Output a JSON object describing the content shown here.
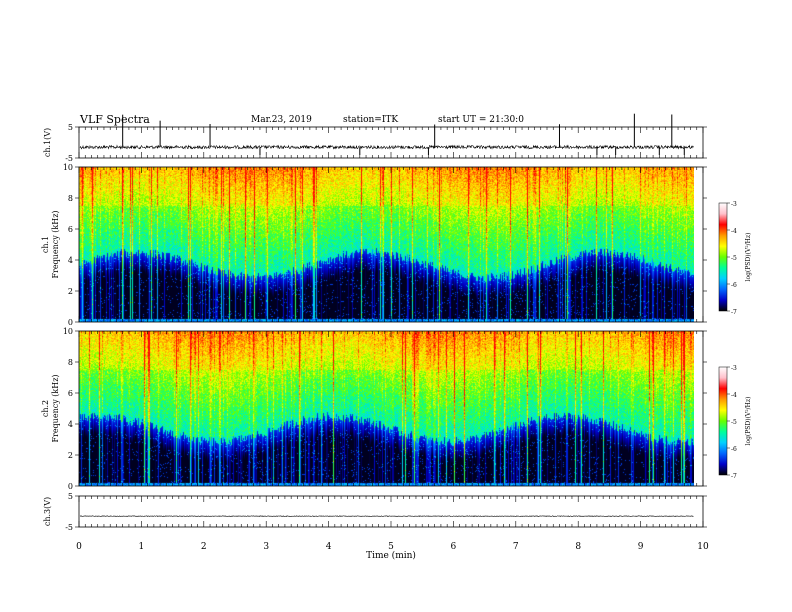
{
  "header": {
    "title": "VLF Spectra",
    "date": "Mar.23, 2019",
    "station": "station=ITK",
    "start_ut": "start UT = 21:30:0"
  },
  "chart_data": [
    {
      "type": "line",
      "name": "ch1-waveform",
      "ylabel": "ch.1(V)",
      "ylim": [
        -5,
        5
      ],
      "y_ticks": [
        "5",
        "-5"
      ],
      "baseline": -1.5,
      "note_spikes_x_min": [
        0.7,
        1.3,
        2.1,
        2.9,
        4.5,
        5.6,
        5.7,
        7.7,
        8.3,
        8.6,
        8.9,
        9.3,
        9.5,
        9.7
      ]
    },
    {
      "type": "heatmap",
      "name": "ch1-spectrogram",
      "ylabel": "ch.1",
      "ylabel2": "Frequency (kHz)",
      "ylim": [
        0,
        10
      ],
      "y_ticks": [
        "0",
        "2",
        "4",
        "6",
        "8",
        "10"
      ],
      "xlim": [
        0,
        10
      ],
      "colorbar": {
        "ticks": [
          "-3",
          "-4",
          "-5",
          "-6",
          "-7"
        ],
        "label": "log(PSD)(V²/Hz)"
      }
    },
    {
      "type": "heatmap",
      "name": "ch2-spectrogram",
      "ylabel": "ch.2",
      "ylabel2": "Frequency (kHz)",
      "ylim": [
        0,
        10
      ],
      "y_ticks": [
        "0",
        "2",
        "4",
        "6",
        "8",
        "10"
      ],
      "xlim": [
        0,
        10
      ],
      "colorbar": {
        "ticks": [
          "-3",
          "-4",
          "-5",
          "-6",
          "-7"
        ],
        "label": "log(PSD)(V²/Hz)"
      }
    },
    {
      "type": "line",
      "name": "ch3-waveform",
      "ylabel": "ch.3(V)",
      "ylim": [
        -5,
        5
      ],
      "y_ticks": [
        "5",
        "-5"
      ],
      "baseline": -1.5
    }
  ],
  "xaxis": {
    "label": "Time (min)",
    "ticks": [
      "0",
      "1",
      "2",
      "3",
      "4",
      "5",
      "6",
      "7",
      "8",
      "9",
      "10"
    ],
    "xlim": [
      0,
      10
    ],
    "data_end": 9.85
  },
  "colors": {
    "scale": [
      "#000000",
      "#0000c8",
      "#0066ff",
      "#00d0ff",
      "#00ff99",
      "#66ff00",
      "#ffff00",
      "#ff9900",
      "#ff0000",
      "#ffc0cb",
      "#ffffff"
    ]
  }
}
